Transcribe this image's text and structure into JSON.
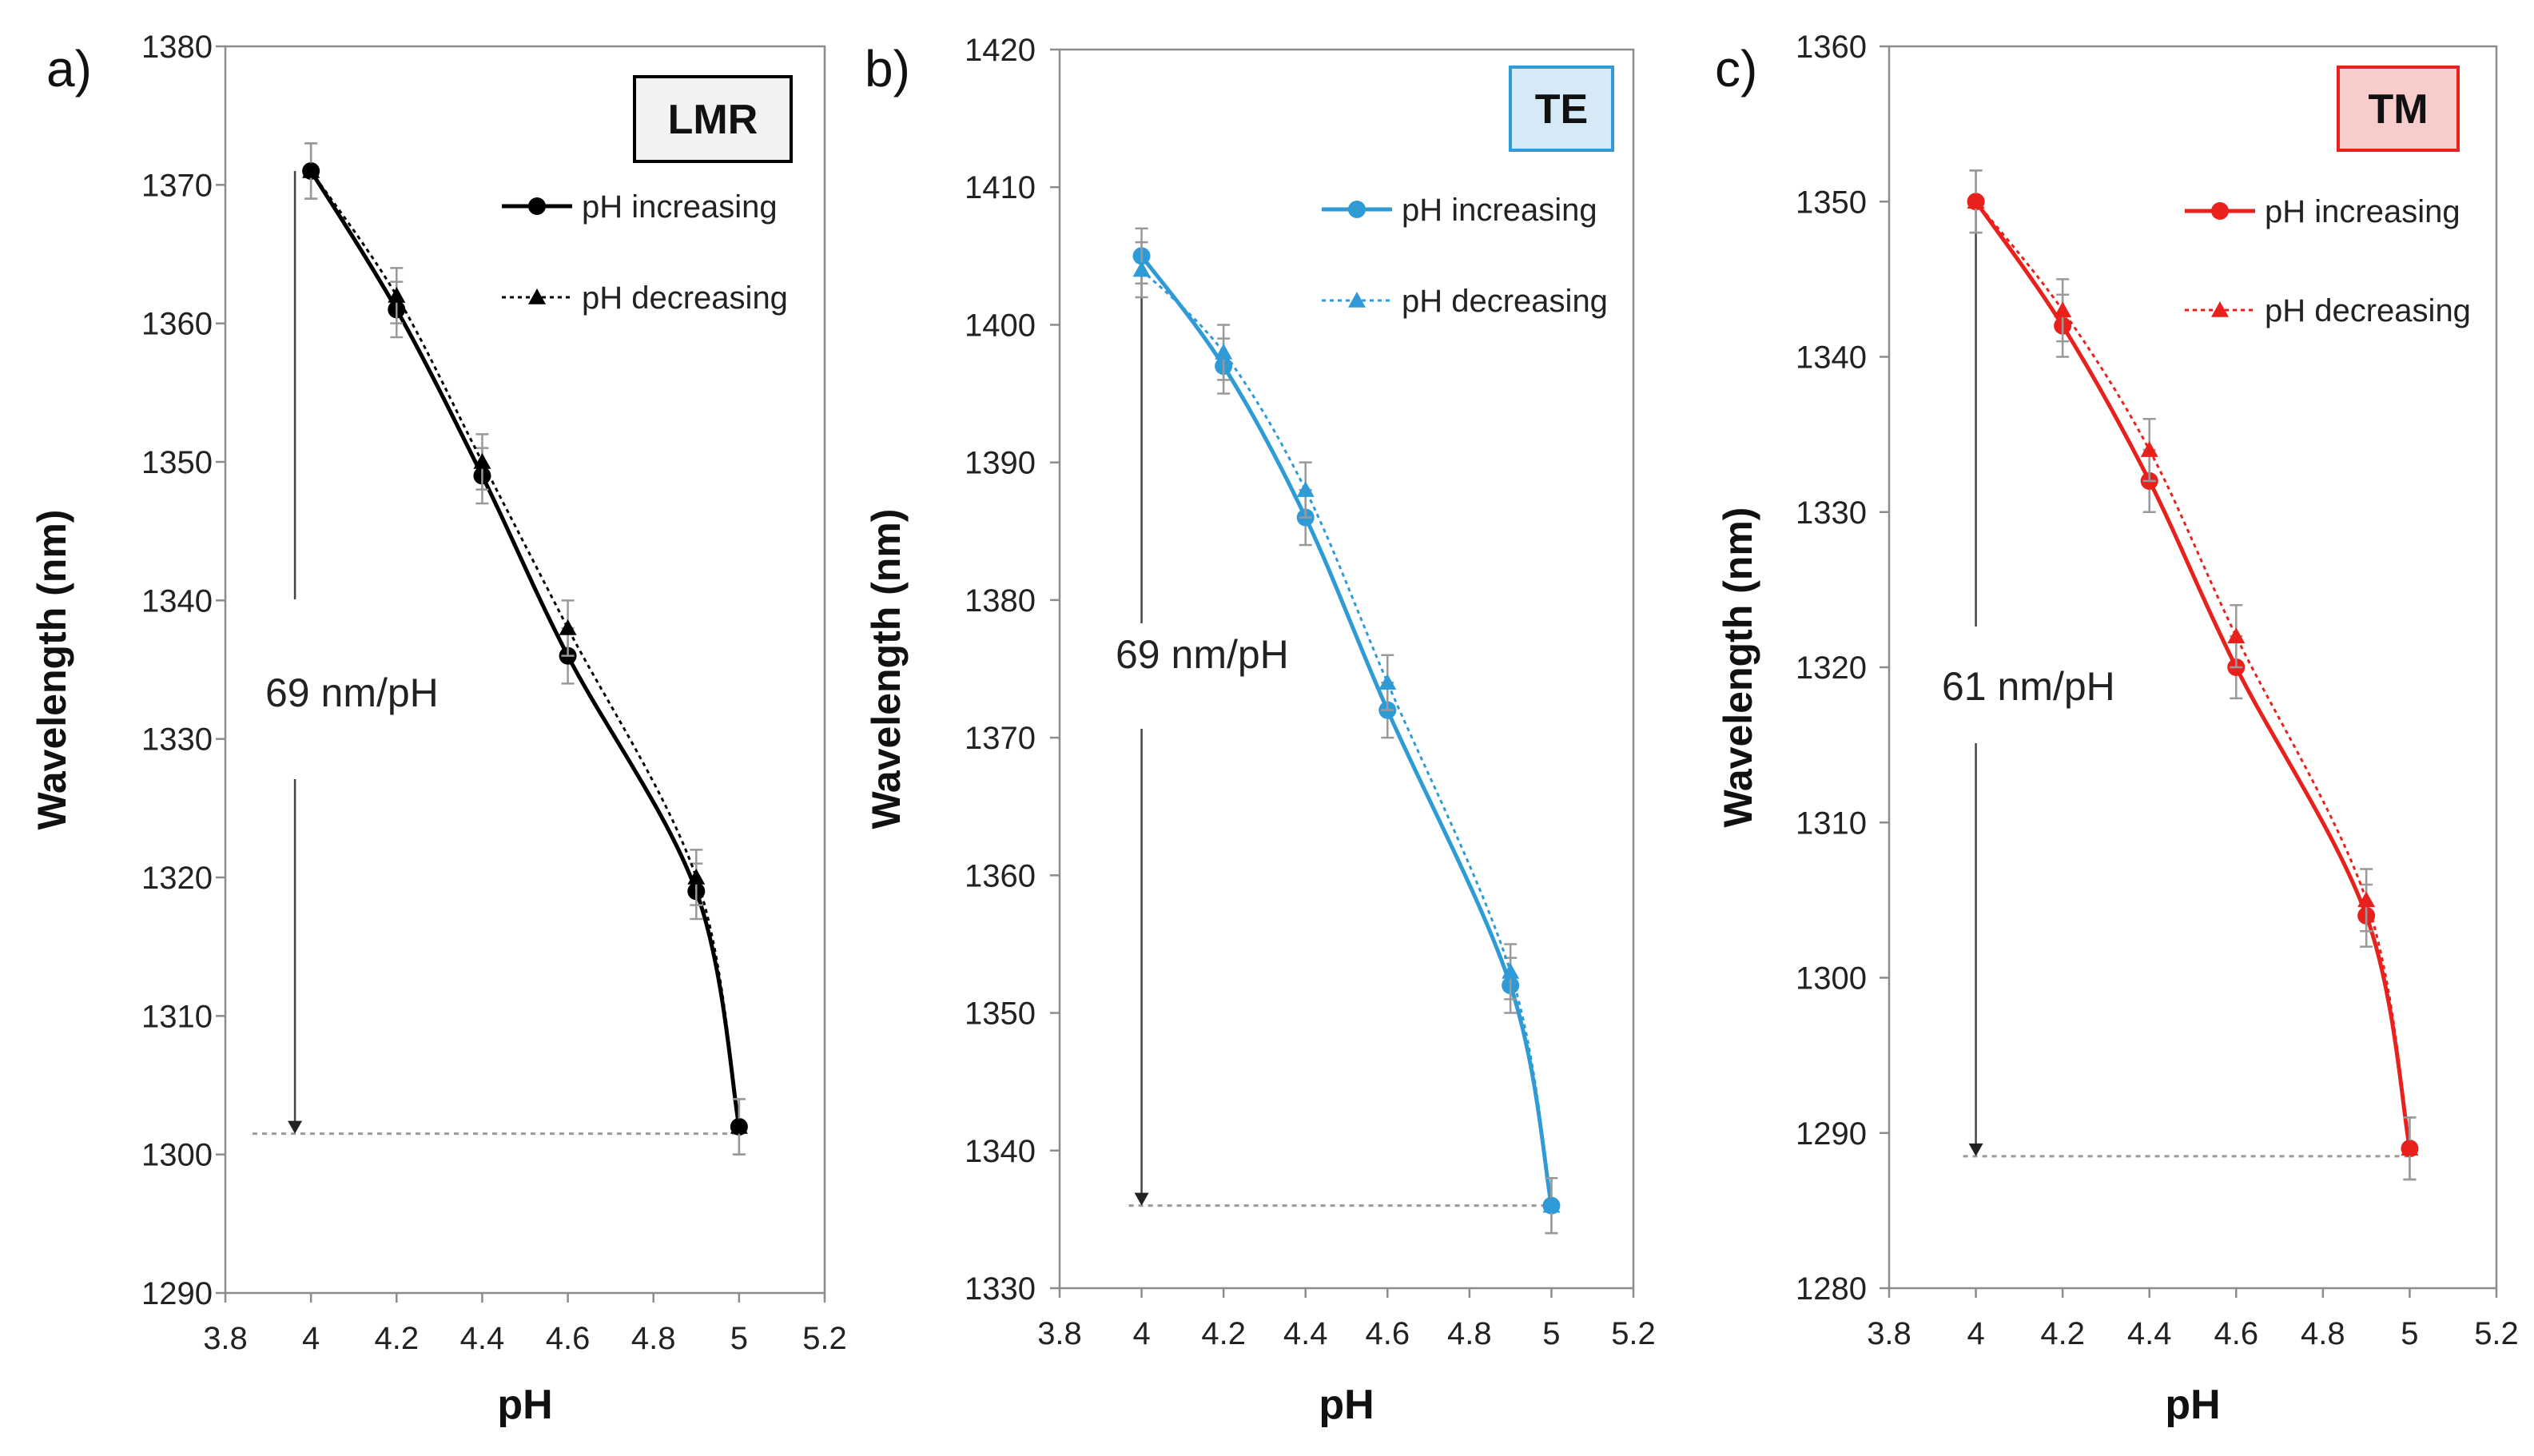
{
  "chart_data": [
    {
      "type": "line",
      "panel_label": "a)",
      "badge": "LMR",
      "color": "#000000",
      "badge_fill": "#f2f2f2",
      "badge_stroke": "#000000",
      "xlabel": "pH",
      "ylabel": "Wavelength (nm)",
      "xlim": [
        3.8,
        5.2
      ],
      "ylim": [
        1290,
        1380
      ],
      "xticks": [
        "3.8",
        "4",
        "4.2",
        "4.4",
        "4.6",
        "4.8",
        "5",
        "5.2"
      ],
      "yticks": [
        "1290",
        "1300",
        "1310",
        "1320",
        "1330",
        "1340",
        "1350",
        "1360",
        "1370",
        "1380"
      ],
      "annotation": "69 nm/pH",
      "arrow_from": 1371,
      "arrow_to": 1301.5,
      "series": [
        {
          "name": "pH increasing",
          "marker": "circle",
          "x": [
            4.0,
            4.2,
            4.4,
            4.6,
            4.9,
            5.0
          ],
          "y": [
            1371,
            1361,
            1349,
            1336,
            1319,
            1302
          ],
          "err": 2
        },
        {
          "name": "pH decreasing",
          "marker": "triangle",
          "x": [
            4.0,
            4.2,
            4.4,
            4.6,
            4.9,
            5.0
          ],
          "y": [
            1371,
            1362,
            1350,
            1338,
            1320,
            1302
          ],
          "err": 2
        }
      ]
    },
    {
      "type": "line",
      "panel_label": "b)",
      "badge": "TE",
      "color": "#2e9bd6",
      "badge_fill": "#d6e9f7",
      "badge_stroke": "#2e9bd6",
      "xlabel": "pH",
      "ylabel": "Wavelength (nm)",
      "xlim": [
        3.8,
        5.2
      ],
      "ylim": [
        1330,
        1420
      ],
      "xticks": [
        "3.8",
        "4",
        "4.2",
        "4.4",
        "4.6",
        "4.8",
        "5",
        "5.2"
      ],
      "yticks": [
        "1330",
        "1340",
        "1350",
        "1360",
        "1370",
        "1380",
        "1390",
        "1400",
        "1410",
        "1420"
      ],
      "annotation": "69 nm/pH",
      "arrow_from": 1405,
      "arrow_to": 1336,
      "series": [
        {
          "name": "pH increasing",
          "marker": "circle",
          "x": [
            4.0,
            4.2,
            4.4,
            4.6,
            4.9,
            5.0
          ],
          "y": [
            1405,
            1397,
            1386,
            1372,
            1352,
            1336
          ],
          "err": 2
        },
        {
          "name": "pH decreasing",
          "marker": "triangle",
          "x": [
            4.0,
            4.2,
            4.4,
            4.6,
            4.9,
            5.0
          ],
          "y": [
            1404,
            1398,
            1388,
            1374,
            1353,
            1336
          ],
          "err": 2
        }
      ]
    },
    {
      "type": "line",
      "panel_label": "c)",
      "badge": "TM",
      "color": "#e8211d",
      "badge_fill": "#f9cccc",
      "badge_stroke": "#e8211d",
      "xlabel": "pH",
      "ylabel": "Wavelength (nm)",
      "xlim": [
        3.8,
        5.2
      ],
      "ylim": [
        1280,
        1360
      ],
      "xticks": [
        "3.8",
        "4",
        "4.2",
        "4.4",
        "4.6",
        "4.8",
        "5",
        "5.2"
      ],
      "yticks": [
        "1280",
        "1290",
        "1300",
        "1310",
        "1320",
        "1330",
        "1340",
        "1350",
        "1360"
      ],
      "annotation": "61 nm/pH",
      "arrow_from": 1350,
      "arrow_to": 1288.5,
      "series": [
        {
          "name": "pH increasing",
          "marker": "circle",
          "x": [
            4.0,
            4.2,
            4.4,
            4.6,
            4.9,
            5.0
          ],
          "y": [
            1350,
            1342,
            1332,
            1320,
            1304,
            1289
          ],
          "err": 2
        },
        {
          "name": "pH decreasing",
          "marker": "triangle",
          "x": [
            4.0,
            4.2,
            4.4,
            4.6,
            4.9,
            5.0
          ],
          "y": [
            1350,
            1343,
            1334,
            1322,
            1305,
            1289
          ],
          "err": 2
        }
      ]
    }
  ]
}
